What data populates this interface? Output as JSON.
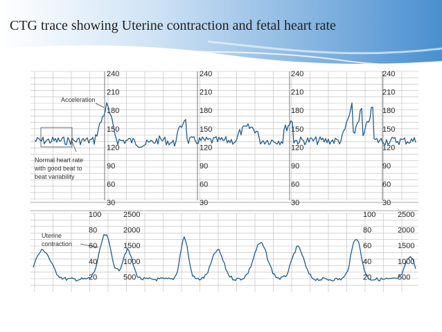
{
  "slide": {
    "title": "CTG trace showing Uterine contraction and fetal heart rate"
  },
  "figure": {
    "annotations": {
      "acceleration": "Acceleration",
      "normal_hr_line1": "Normal heart rate",
      "normal_hr_line2": "with good beat to",
      "normal_hr_line3": "beat variability",
      "uterine_line1": "Uterine",
      "uterine_line2": "contraction"
    },
    "fhr_ticks": [
      "240",
      "210",
      "180",
      "150",
      "120",
      "90",
      "60",
      "30"
    ],
    "uc_ticks_left": [
      "100",
      "80",
      "60",
      "40",
      "20"
    ],
    "uc_ticks_right": [
      "2500",
      "2000",
      "1500",
      "1000",
      "500"
    ],
    "colors": {
      "trace": "#1f5a8a",
      "grid": "#b9b9b9",
      "banner": "#6fa9dc"
    }
  }
}
